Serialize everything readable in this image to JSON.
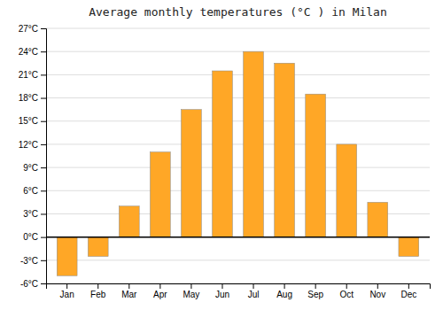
{
  "chart_data": {
    "type": "bar",
    "title": "Average monthly temperatures (°C ) in Milan",
    "categories": [
      "Jan",
      "Feb",
      "Mar",
      "Apr",
      "May",
      "Jun",
      "Jul",
      "Aug",
      "Sep",
      "Oct",
      "Nov",
      "Dec"
    ],
    "values": [
      -5.0,
      -2.5,
      4.0,
      11.0,
      16.5,
      21.5,
      24.0,
      22.5,
      18.5,
      12.0,
      4.5,
      -2.5
    ],
    "color": "#FFA726",
    "ylim": [
      -6,
      27
    ],
    "yticks": [
      {
        "value": -6,
        "label": "-6°C"
      },
      {
        "value": -3,
        "label": "-3°C"
      },
      {
        "value": 0,
        "label": "0°C"
      },
      {
        "value": 3,
        "label": "3°C"
      },
      {
        "value": 6,
        "label": "6°C"
      },
      {
        "value": 9,
        "label": "9°C"
      },
      {
        "value": 12,
        "label": "12°C"
      },
      {
        "value": 15,
        "label": "15°C"
      },
      {
        "value": 18,
        "label": "18°C"
      },
      {
        "value": 21,
        "label": "21°C"
      },
      {
        "value": 24,
        "label": "24°C"
      },
      {
        "value": 27,
        "label": "27°C"
      }
    ],
    "grid": true
  }
}
